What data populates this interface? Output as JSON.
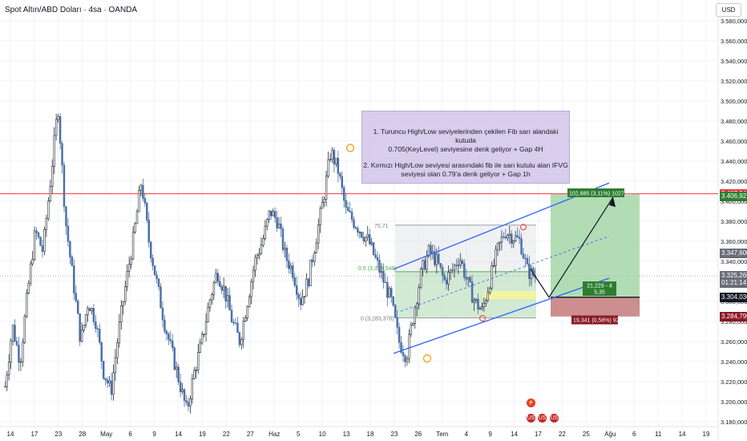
{
  "header": {
    "symbol": "Spot Altın/ABD Doları · 4sa · OANDA",
    "currency": "USD"
  },
  "note": {
    "line1": "1. Turuncu High/Low seviyelerinden çekilen Fib sarı alandaki kutuda\n0.705(KeyLevel) seviyesine denk geliyor + Gap 4H",
    "line2": "2. Kırmızı High/Low seviyesi arasındaki fib ile sarı kutulu alan IFVG\nseviyesi olan 0.79'a denk geliyor + Gap 1h"
  },
  "fib": {
    "label_05": "0.5 (3,329,548)",
    "label_0": "0 (3,283,378)",
    "label_top_partial": "75,71"
  },
  "position": {
    "target_label": "102,885 (3,11%) 1027,77",
    "rr_label_1": "21,229 - 4",
    "rr_label_2": "5,35",
    "stop_label": "19,341 (0,58%) 920"
  },
  "price_tags": [
    {
      "label": "3.407,342",
      "price": 3407.342,
      "color": "#f23645"
    },
    {
      "label": "3.406,921",
      "price": 3404.8,
      "color": "#2f7d32"
    },
    {
      "label": "3.347,600",
      "price": 3347.6,
      "color": "#6a6d78"
    },
    {
      "label": "3.325,265",
      "price": 3325.265,
      "color": "#6a6d78"
    },
    {
      "label": "01:21:14",
      "price": 3318.0,
      "color": "#6a6d78"
    },
    {
      "label": "3.304,036",
      "price": 3304.036,
      "color": "#131722"
    },
    {
      "label": "3.284,795",
      "price": 3284.795,
      "color": "#8b1a24"
    }
  ],
  "events": [
    {
      "symbol": "⚡",
      "kind": "lightning-icon"
    },
    {
      "symbol": "US",
      "kind": "us-flag-icon"
    },
    {
      "symbol": "US",
      "kind": "us-flag-icon"
    },
    {
      "symbol": "US",
      "kind": "us-flag-icon"
    }
  ],
  "colors": {
    "up": "#2a2e39",
    "down": "#4a6fa5",
    "grid": "#f0f3fa",
    "channel": "#2962ff",
    "target_zone": "#a5d6a7",
    "stop_zone": "#c62828",
    "fib_zone": "#c8e6c9",
    "red_line": "#f23645"
  },
  "chart_data": {
    "type": "candlestick",
    "title": "Spot Altın/ABD Doları · 4sa · OANDA",
    "ylim": [
      3175,
      3595
    ],
    "y_ticks": [
      3180,
      3200,
      3220,
      3240,
      3260,
      3280,
      3300,
      3320,
      3340,
      3360,
      3380,
      3400,
      3420,
      3440,
      3460,
      3480,
      3500,
      3520,
      3540,
      3560,
      3580
    ],
    "y_tick_labels": [
      "3.180,000",
      "3.200,000",
      "3.220,000",
      "3.240,000",
      "3.260,000",
      "3.280,000",
      "3.300,000",
      "3.320,000",
      "3.340,000",
      "3.360,000",
      "3.380,000",
      "3.400,000",
      "3.420,000",
      "3.440,000",
      "3.460,000",
      "3.480,000",
      "3.500,000",
      "3.520,000",
      "3.540,000",
      "3.560,000",
      "3.580,000"
    ],
    "x_labels": [
      "14",
      "17",
      "23",
      "28",
      "May",
      "6",
      "9",
      "14",
      "19",
      "22",
      "27",
      "Haz",
      "5",
      "10",
      "13",
      "18",
      "23",
      "26",
      "Tem",
      "4",
      "9",
      "14",
      "17",
      "22",
      "25",
      "Ağu",
      "6",
      "11",
      "14",
      "19"
    ],
    "price_path": [
      3215,
      3275,
      3240,
      3310,
      3370,
      3350,
      3420,
      3495,
      3380,
      3320,
      3260,
      3300,
      3280,
      3230,
      3210,
      3270,
      3320,
      3365,
      3420,
      3360,
      3320,
      3280,
      3250,
      3220,
      3190,
      3230,
      3260,
      3300,
      3330,
      3310,
      3280,
      3260,
      3300,
      3340,
      3360,
      3390,
      3380,
      3345,
      3330,
      3300,
      3320,
      3360,
      3400,
      3450,
      3430,
      3390,
      3380,
      3370,
      3360,
      3340,
      3320,
      3300,
      3260,
      3245,
      3290,
      3330,
      3350,
      3340,
      3320,
      3330,
      3345,
      3320,
      3300,
      3290,
      3320,
      3350,
      3370,
      3365,
      3360,
      3330,
      3325
    ],
    "horizontal_levels": [
      3407.342,
      3325.265
    ],
    "target_level": 3406.921,
    "entry_level": 3304.036,
    "stop_level": 3284.795,
    "fib_levels": [
      3329.548,
      3283.378
    ]
  }
}
